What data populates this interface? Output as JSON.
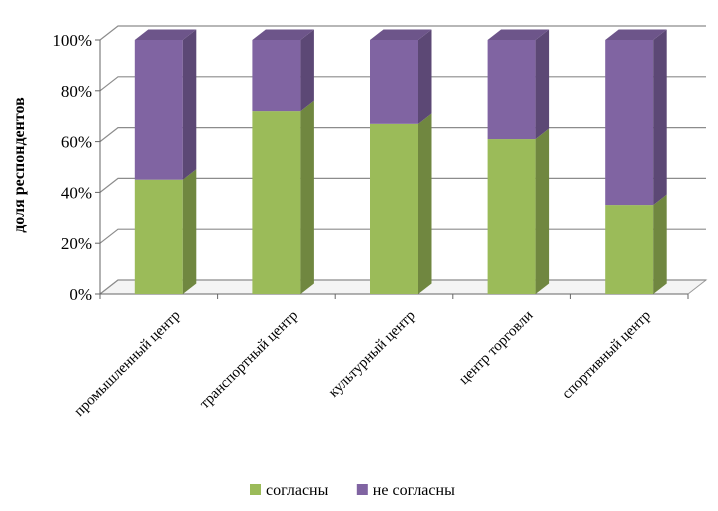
{
  "chart_data": {
    "type": "bar",
    "stacked": true,
    "percent": true,
    "three_d": true,
    "categories": [
      "промышленный центр",
      "транспортный центр",
      "культурный центр",
      "центр торговли",
      "спортивный центр"
    ],
    "series": [
      {
        "name": "согласны",
        "values": [
          45,
          72,
          67,
          61,
          35
        ],
        "color": "#9BBB59"
      },
      {
        "name": "не согласны",
        "values": [
          55,
          28,
          33,
          39,
          65
        ],
        "color": "#8064A2"
      }
    ],
    "ylabel": "доля респондентов",
    "xlabel": "",
    "ylim": [
      0,
      100
    ],
    "yticks": [
      "0%",
      "20%",
      "40%",
      "60%",
      "80%",
      "100%"
    ],
    "grid": true,
    "legend_position": "bottom"
  }
}
